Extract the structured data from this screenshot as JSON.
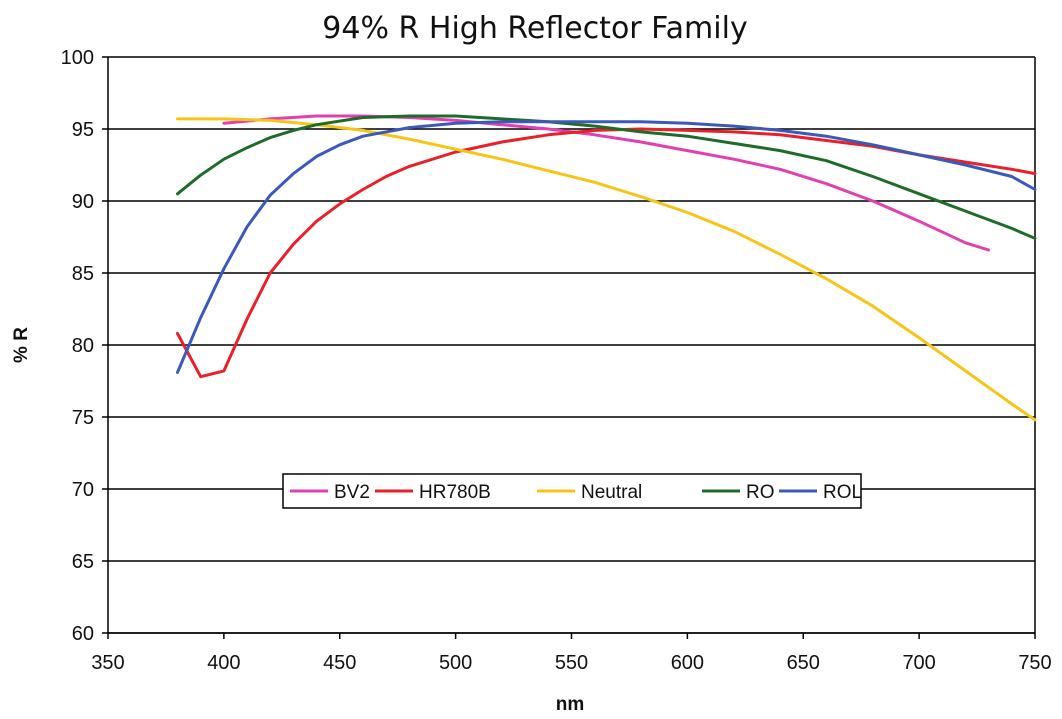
{
  "chart_data": {
    "type": "line",
    "title": "94% R High Reflector Family",
    "xlabel": "nm",
    "ylabel": "% R",
    "xlim": [
      350,
      750
    ],
    "ylim": [
      60,
      100
    ],
    "xticks": [
      350,
      400,
      450,
      500,
      550,
      600,
      650,
      700,
      750
    ],
    "yticks": [
      60,
      65,
      70,
      75,
      80,
      85,
      90,
      95,
      100
    ],
    "grid": "horizontal",
    "legend": "center",
    "series": [
      {
        "name": "BV2",
        "color": "#e040b0",
        "x": [
          400,
          420,
          440,
          460,
          480,
          500,
          520,
          540,
          560,
          580,
          600,
          620,
          640,
          660,
          680,
          700,
          720,
          730
        ],
        "y": [
          95.4,
          95.7,
          95.9,
          95.9,
          95.8,
          95.6,
          95.3,
          95.0,
          94.6,
          94.1,
          93.5,
          92.9,
          92.2,
          91.2,
          90.0,
          88.6,
          87.1,
          86.6
        ]
      },
      {
        "name": "HR780B",
        "color": "#e8202a",
        "x": [
          380,
          390,
          400,
          410,
          420,
          430,
          440,
          450,
          460,
          470,
          480,
          500,
          520,
          540,
          560,
          580,
          600,
          620,
          640,
          660,
          680,
          700,
          720,
          740,
          750
        ],
        "y": [
          80.8,
          77.8,
          78.2,
          81.8,
          85.0,
          87.0,
          88.6,
          89.8,
          90.8,
          91.7,
          92.4,
          93.4,
          94.1,
          94.6,
          94.9,
          95.0,
          94.9,
          94.8,
          94.6,
          94.2,
          93.8,
          93.2,
          92.7,
          92.2,
          91.9
        ]
      },
      {
        "name": "Neutral",
        "color": "#f5c518",
        "x": [
          380,
          400,
          420,
          440,
          460,
          480,
          500,
          520,
          540,
          560,
          580,
          600,
          620,
          640,
          660,
          680,
          700,
          720,
          740,
          750
        ],
        "y": [
          95.7,
          95.7,
          95.6,
          95.3,
          94.9,
          94.3,
          93.6,
          92.9,
          92.1,
          91.3,
          90.3,
          89.2,
          87.9,
          86.3,
          84.6,
          82.7,
          80.5,
          78.2,
          75.9,
          74.8
        ]
      },
      {
        "name": "RO",
        "color": "#1f6b2a",
        "x": [
          380,
          390,
          400,
          410,
          420,
          430,
          440,
          460,
          480,
          500,
          520,
          540,
          560,
          580,
          600,
          620,
          640,
          660,
          680,
          700,
          720,
          740,
          750
        ],
        "y": [
          90.5,
          91.8,
          92.9,
          93.7,
          94.4,
          94.9,
          95.3,
          95.8,
          95.9,
          95.9,
          95.7,
          95.5,
          95.2,
          94.8,
          94.5,
          94.0,
          93.5,
          92.8,
          91.7,
          90.5,
          89.3,
          88.1,
          87.4
        ]
      },
      {
        "name": "ROL",
        "color": "#3a59b8",
        "x": [
          380,
          390,
          400,
          410,
          420,
          430,
          440,
          450,
          460,
          480,
          500,
          520,
          540,
          560,
          580,
          600,
          620,
          640,
          660,
          680,
          700,
          720,
          740,
          750
        ],
        "y": [
          78.1,
          81.9,
          85.3,
          88.2,
          90.4,
          91.9,
          93.1,
          93.9,
          94.5,
          95.1,
          95.4,
          95.5,
          95.5,
          95.5,
          95.5,
          95.4,
          95.2,
          94.9,
          94.5,
          93.9,
          93.2,
          92.5,
          91.7,
          90.8
        ]
      }
    ]
  }
}
